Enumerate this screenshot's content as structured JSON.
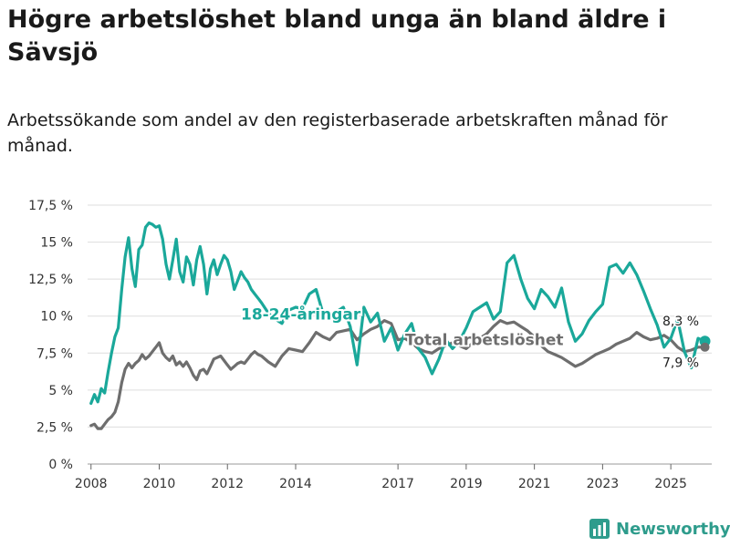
{
  "title": "Högre arbetslöshet bland unga än bland äldre i Sävsjö",
  "subtitle": "Arbetssökande som andel av den registerbaserade arbetskraften månad för månad.",
  "brand": "Newsworthy",
  "colors": {
    "young": "#1aa89a",
    "total": "#6e6e6e",
    "grid": "#dddddd",
    "brand": "#2e9c8c"
  },
  "chart_data": {
    "type": "line",
    "title": "Högre arbetslöshet bland unga än bland äldre i Sävsjö",
    "xlabel": "",
    "ylabel": "",
    "xlim": [
      2007.9,
      2026.2
    ],
    "ylim": [
      0,
      17.5
    ],
    "y_ticks": [
      {
        "value": 0,
        "label": "0 %"
      },
      {
        "value": 2.5,
        "label": "2,5 %"
      },
      {
        "value": 5,
        "label": "5 %"
      },
      {
        "value": 7.5,
        "label": "7,5 %"
      },
      {
        "value": 10,
        "label": "10 %"
      },
      {
        "value": 12.5,
        "label": "12,5 %"
      },
      {
        "value": 15,
        "label": "15 %"
      },
      {
        "value": 17.5,
        "label": "17,5 %"
      }
    ],
    "x_ticks": [
      {
        "value": 2008,
        "label": "2008"
      },
      {
        "value": 2010,
        "label": "2010"
      },
      {
        "value": 2012,
        "label": "2012"
      },
      {
        "value": 2014,
        "label": "2014"
      },
      {
        "value": 2017,
        "label": "2017"
      },
      {
        "value": 2019,
        "label": "2019"
      },
      {
        "value": 2021,
        "label": "2021"
      },
      {
        "value": 2023,
        "label": "2023"
      },
      {
        "value": 2025,
        "label": "2025"
      }
    ],
    "series": [
      {
        "name": "18-24-åringar",
        "color": "#1aa89a",
        "end_label": "8,3 %",
        "x": [
          2008.0,
          2008.1,
          2008.2,
          2008.3,
          2008.4,
          2008.5,
          2008.6,
          2008.7,
          2008.8,
          2008.9,
          2009.0,
          2009.1,
          2009.2,
          2009.3,
          2009.4,
          2009.5,
          2009.6,
          2009.7,
          2009.8,
          2009.9,
          2010.0,
          2010.1,
          2010.2,
          2010.3,
          2010.4,
          2010.5,
          2010.6,
          2010.7,
          2010.8,
          2010.9,
          2011.0,
          2011.1,
          2011.2,
          2011.3,
          2011.4,
          2011.5,
          2011.6,
          2011.7,
          2011.8,
          2011.9,
          2012.0,
          2012.1,
          2012.2,
          2012.3,
          2012.4,
          2012.5,
          2012.6,
          2012.7,
          2012.8,
          2012.9,
          2013.0,
          2013.2,
          2013.4,
          2013.6,
          2013.8,
          2014.0,
          2014.2,
          2014.4,
          2014.6,
          2014.8,
          2015.0,
          2015.2,
          2015.4,
          2015.6,
          2015.8,
          2016.0,
          2016.2,
          2016.4,
          2016.6,
          2016.8,
          2017.0,
          2017.2,
          2017.4,
          2017.6,
          2017.8,
          2018.0,
          2018.2,
          2018.4,
          2018.6,
          2018.8,
          2019.0,
          2019.2,
          2019.4,
          2019.6,
          2019.8,
          2020.0,
          2020.2,
          2020.4,
          2020.6,
          2020.8,
          2021.0,
          2021.2,
          2021.4,
          2021.6,
          2021.8,
          2022.0,
          2022.2,
          2022.4,
          2022.6,
          2022.8,
          2023.0,
          2023.2,
          2023.4,
          2023.6,
          2023.8,
          2024.0,
          2024.2,
          2024.4,
          2024.6,
          2024.8,
          2025.0,
          2025.2,
          2025.4,
          2025.6,
          2025.8,
          2026.0
        ],
        "values": [
          4.1,
          4.7,
          4.2,
          5.1,
          4.8,
          6.2,
          7.5,
          8.6,
          9.2,
          11.8,
          14.0,
          15.3,
          13.2,
          12.0,
          14.5,
          14.8,
          16.0,
          16.3,
          16.2,
          16.0,
          16.1,
          15.2,
          13.5,
          12.5,
          13.8,
          15.2,
          13.0,
          12.3,
          14.0,
          13.5,
          12.1,
          13.8,
          14.7,
          13.5,
          11.5,
          13.2,
          13.8,
          12.8,
          13.5,
          14.1,
          13.8,
          13.0,
          11.8,
          12.4,
          13.0,
          12.6,
          12.3,
          11.8,
          11.5,
          11.2,
          10.9,
          10.2,
          9.8,
          9.5,
          10.4,
          10.6,
          10.5,
          11.5,
          11.8,
          10.2,
          9.8,
          10.3,
          10.6,
          9.3,
          6.7,
          10.6,
          9.6,
          10.2,
          8.3,
          9.2,
          7.7,
          8.8,
          9.5,
          7.8,
          7.2,
          6.1,
          7.1,
          8.4,
          7.8,
          8.3,
          9.2,
          10.3,
          10.6,
          10.9,
          9.8,
          10.3,
          13.6,
          14.1,
          12.5,
          11.2,
          10.5,
          11.8,
          11.3,
          10.6,
          11.9,
          9.6,
          8.3,
          8.8,
          9.7,
          10.3,
          10.8,
          13.3,
          13.5,
          12.9,
          13.6,
          12.8,
          11.7,
          10.5,
          9.4,
          7.9,
          8.5,
          9.8,
          7.6,
          6.5,
          8.5,
          8.3
        ]
      },
      {
        "name": "Total arbetslöshet",
        "color": "#6e6e6e",
        "end_label": "7,9 %",
        "x": [
          2008.0,
          2008.1,
          2008.2,
          2008.3,
          2008.4,
          2008.5,
          2008.6,
          2008.7,
          2008.8,
          2008.9,
          2009.0,
          2009.1,
          2009.2,
          2009.3,
          2009.4,
          2009.5,
          2009.6,
          2009.7,
          2009.8,
          2009.9,
          2010.0,
          2010.1,
          2010.2,
          2010.3,
          2010.4,
          2010.5,
          2010.6,
          2010.7,
          2010.8,
          2010.9,
          2011.0,
          2011.1,
          2011.2,
          2011.3,
          2011.4,
          2011.5,
          2011.6,
          2011.7,
          2011.8,
          2011.9,
          2012.0,
          2012.1,
          2012.2,
          2012.3,
          2012.4,
          2012.5,
          2012.6,
          2012.7,
          2012.8,
          2012.9,
          2013.0,
          2013.2,
          2013.4,
          2013.6,
          2013.8,
          2014.0,
          2014.2,
          2014.4,
          2014.6,
          2014.8,
          2015.0,
          2015.2,
          2015.4,
          2015.6,
          2015.8,
          2016.0,
          2016.2,
          2016.4,
          2016.6,
          2016.8,
          2017.0,
          2017.2,
          2017.4,
          2017.6,
          2017.8,
          2018.0,
          2018.2,
          2018.4,
          2018.6,
          2018.8,
          2019.0,
          2019.2,
          2019.4,
          2019.6,
          2019.8,
          2020.0,
          2020.2,
          2020.4,
          2020.6,
          2020.8,
          2021.0,
          2021.2,
          2021.4,
          2021.6,
          2021.8,
          2022.0,
          2022.2,
          2022.4,
          2022.6,
          2022.8,
          2023.0,
          2023.2,
          2023.4,
          2023.6,
          2023.8,
          2024.0,
          2024.2,
          2024.4,
          2024.6,
          2024.8,
          2025.0,
          2025.2,
          2025.4,
          2025.6,
          2025.8,
          2026.0
        ],
        "values": [
          2.6,
          2.7,
          2.4,
          2.4,
          2.7,
          3.0,
          3.2,
          3.5,
          4.2,
          5.5,
          6.4,
          6.8,
          6.5,
          6.8,
          7.0,
          7.4,
          7.1,
          7.3,
          7.6,
          7.9,
          8.2,
          7.5,
          7.2,
          7.0,
          7.3,
          6.7,
          6.9,
          6.6,
          6.9,
          6.5,
          6.0,
          5.7,
          6.3,
          6.4,
          6.1,
          6.6,
          7.1,
          7.2,
          7.3,
          7.0,
          6.7,
          6.4,
          6.6,
          6.8,
          6.9,
          6.8,
          7.1,
          7.4,
          7.6,
          7.4,
          7.3,
          6.9,
          6.6,
          7.3,
          7.8,
          7.7,
          7.6,
          8.2,
          8.9,
          8.6,
          8.4,
          8.9,
          9.0,
          9.1,
          8.4,
          8.8,
          9.1,
          9.3,
          9.7,
          9.5,
          8.4,
          8.5,
          8.2,
          7.8,
          7.6,
          7.5,
          7.8,
          8.0,
          8.2,
          8.0,
          7.8,
          8.2,
          8.5,
          8.8,
          9.3,
          9.7,
          9.5,
          9.6,
          9.3,
          9.0,
          8.6,
          8.0,
          7.6,
          7.4,
          7.2,
          6.9,
          6.6,
          6.8,
          7.1,
          7.4,
          7.6,
          7.8,
          8.1,
          8.3,
          8.5,
          8.9,
          8.6,
          8.4,
          8.5,
          8.7,
          8.4,
          7.9,
          7.6,
          7.7,
          7.9,
          7.9
        ]
      }
    ],
    "annotations": [
      {
        "text": "18-24-åringar",
        "series": 0
      },
      {
        "text": "Total arbetslöshet",
        "series": 1
      }
    ]
  }
}
